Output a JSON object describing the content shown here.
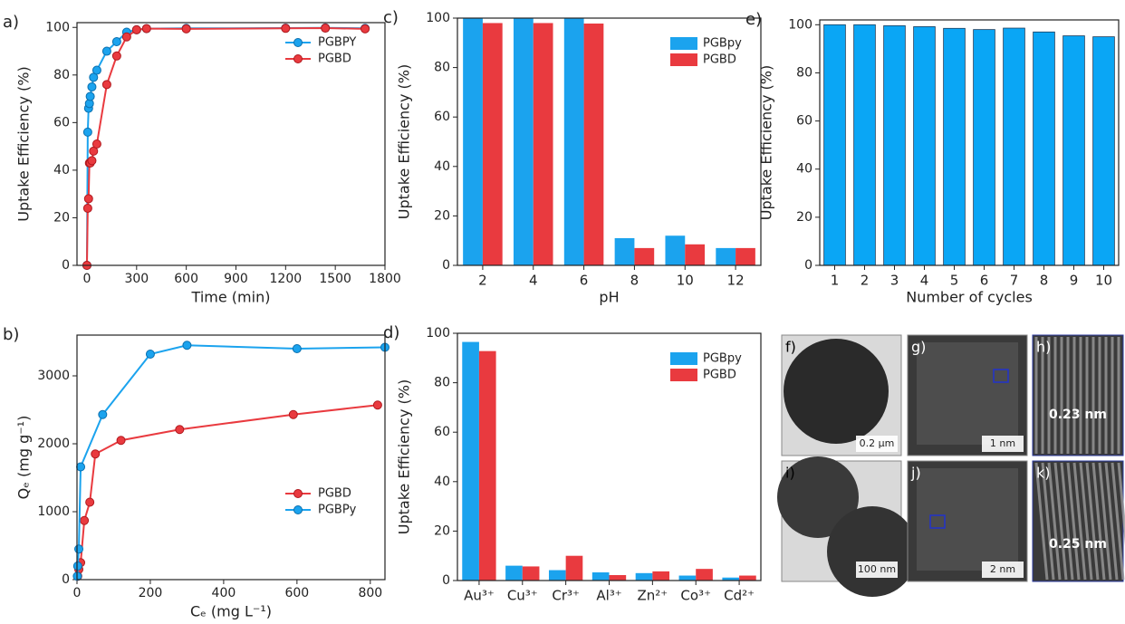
{
  "chart_data": [
    {
      "type": "line",
      "panel": "a)",
      "x_label": "Time (min)",
      "y_label": "Uptake Efficiency (%)",
      "xlim": [
        -60,
        1800
      ],
      "xticks": [
        0,
        300,
        600,
        900,
        1200,
        1500,
        1800
      ],
      "ylim": [
        0,
        102
      ],
      "yticks": [
        0,
        20,
        40,
        60,
        80,
        100
      ],
      "legend": "upper right",
      "series": [
        {
          "name": "PGBPY",
          "color": "#1ba3ee",
          "x": [
            0,
            5,
            10,
            15,
            20,
            30,
            40,
            60,
            120,
            180,
            240,
            300,
            360,
            600,
            1200,
            1440,
            1680
          ],
          "values": [
            0,
            56,
            66,
            68,
            71,
            75,
            79,
            82,
            90,
            94,
            98,
            99,
            99.5,
            99.6,
            99.7,
            99.8,
            99.6
          ]
        },
        {
          "name": "PGBD",
          "color": "#e93a3f",
          "x": [
            0,
            5,
            10,
            15,
            20,
            30,
            40,
            60,
            120,
            180,
            240,
            300,
            360,
            600,
            1200,
            1440,
            1680
          ],
          "values": [
            0,
            24,
            28,
            43,
            43,
            44,
            48,
            51,
            76,
            88,
            96,
            99,
            99.5,
            99.4,
            99.6,
            99.7,
            99.4
          ]
        }
      ]
    },
    {
      "type": "line",
      "panel": "b)",
      "x_label": "Cₑ (mg L⁻¹)",
      "y_label": "Qₑ (mg g⁻¹)",
      "xlim": [
        0,
        840
      ],
      "xticks": [
        0,
        200,
        400,
        600,
        800
      ],
      "ylim": [
        0,
        3600
      ],
      "yticks": [
        0,
        1000,
        2000,
        3000
      ],
      "legend": "lower right",
      "series": [
        {
          "name": "PGBD",
          "color": "#e93a3f",
          "x": [
            2,
            5,
            10,
            20,
            35,
            50,
            120,
            280,
            590,
            820
          ],
          "values": [
            50,
            150,
            250,
            870,
            1140,
            1850,
            2050,
            2210,
            2430,
            2570
          ]
        },
        {
          "name": "PGBPy",
          "color": "#1ba3ee",
          "x": [
            1,
            2,
            5,
            10,
            70,
            200,
            300,
            600,
            840
          ],
          "values": [
            50,
            200,
            450,
            1660,
            2430,
            3320,
            3450,
            3400,
            3420
          ]
        }
      ]
    },
    {
      "type": "bar",
      "panel": "c)",
      "x_label": "pH",
      "y_label": "Uptake Efficiency (%)",
      "categories": [
        "2",
        "4",
        "6",
        "8",
        "10",
        "12"
      ],
      "ylim": [
        0,
        100
      ],
      "yticks": [
        0,
        20,
        40,
        60,
        80,
        100
      ],
      "legend": "upper right",
      "series": [
        {
          "name": "PGBpy",
          "color": "#1ba3ee",
          "values": [
            100,
            100,
            100,
            11,
            12,
            7
          ]
        },
        {
          "name": "PGBD",
          "color": "#e93a3f",
          "values": [
            98,
            98,
            97.8,
            7,
            8.5,
            7
          ]
        }
      ]
    },
    {
      "type": "bar",
      "panel": "d)",
      "y_label": "Uptake Efficiency (%)",
      "categories": [
        "Au³⁺",
        "Cu³⁺",
        "Cr³⁺",
        "Al³⁺",
        "Zn²⁺",
        "Co³⁺",
        "Cd²⁺"
      ],
      "ylim": [
        0,
        100
      ],
      "yticks": [
        0,
        20,
        40,
        60,
        80,
        100
      ],
      "legend": "upper right",
      "series": [
        {
          "name": "PGBpy",
          "color": "#1ba3ee",
          "values": [
            96.5,
            6,
            4.2,
            3.3,
            3,
            2,
            1.2
          ]
        },
        {
          "name": "PGBD",
          "color": "#e93a3f",
          "values": [
            92.8,
            5.7,
            10,
            2.2,
            3.7,
            4.7,
            2
          ]
        }
      ]
    },
    {
      "type": "bar",
      "panel": "e)",
      "x_label": "Number of cycles",
      "y_label": "Uptake Efficiency (%)",
      "categories": [
        "1",
        "2",
        "3",
        "4",
        "5",
        "6",
        "7",
        "8",
        "9",
        "10"
      ],
      "ylim": [
        0,
        102
      ],
      "yticks": [
        0,
        20,
        40,
        60,
        80,
        100
      ],
      "color": "#0aa6f5",
      "edgecolor": "#1d3d5c",
      "values": [
        100,
        100,
        99.6,
        99.2,
        98.5,
        98,
        98.6,
        97,
        95.4,
        95
      ]
    }
  ],
  "micrographs": [
    {
      "label": "f)",
      "scale_bar": "0.2 µm"
    },
    {
      "label": "g)",
      "scale_bar": "1 nm"
    },
    {
      "label": "h)",
      "annotation": "0.23 nm"
    },
    {
      "label": "i)",
      "scale_bar": "100 nm"
    },
    {
      "label": "j)",
      "scale_bar": "2 nm"
    },
    {
      "label": "k)",
      "annotation": "0.25 nm"
    }
  ]
}
